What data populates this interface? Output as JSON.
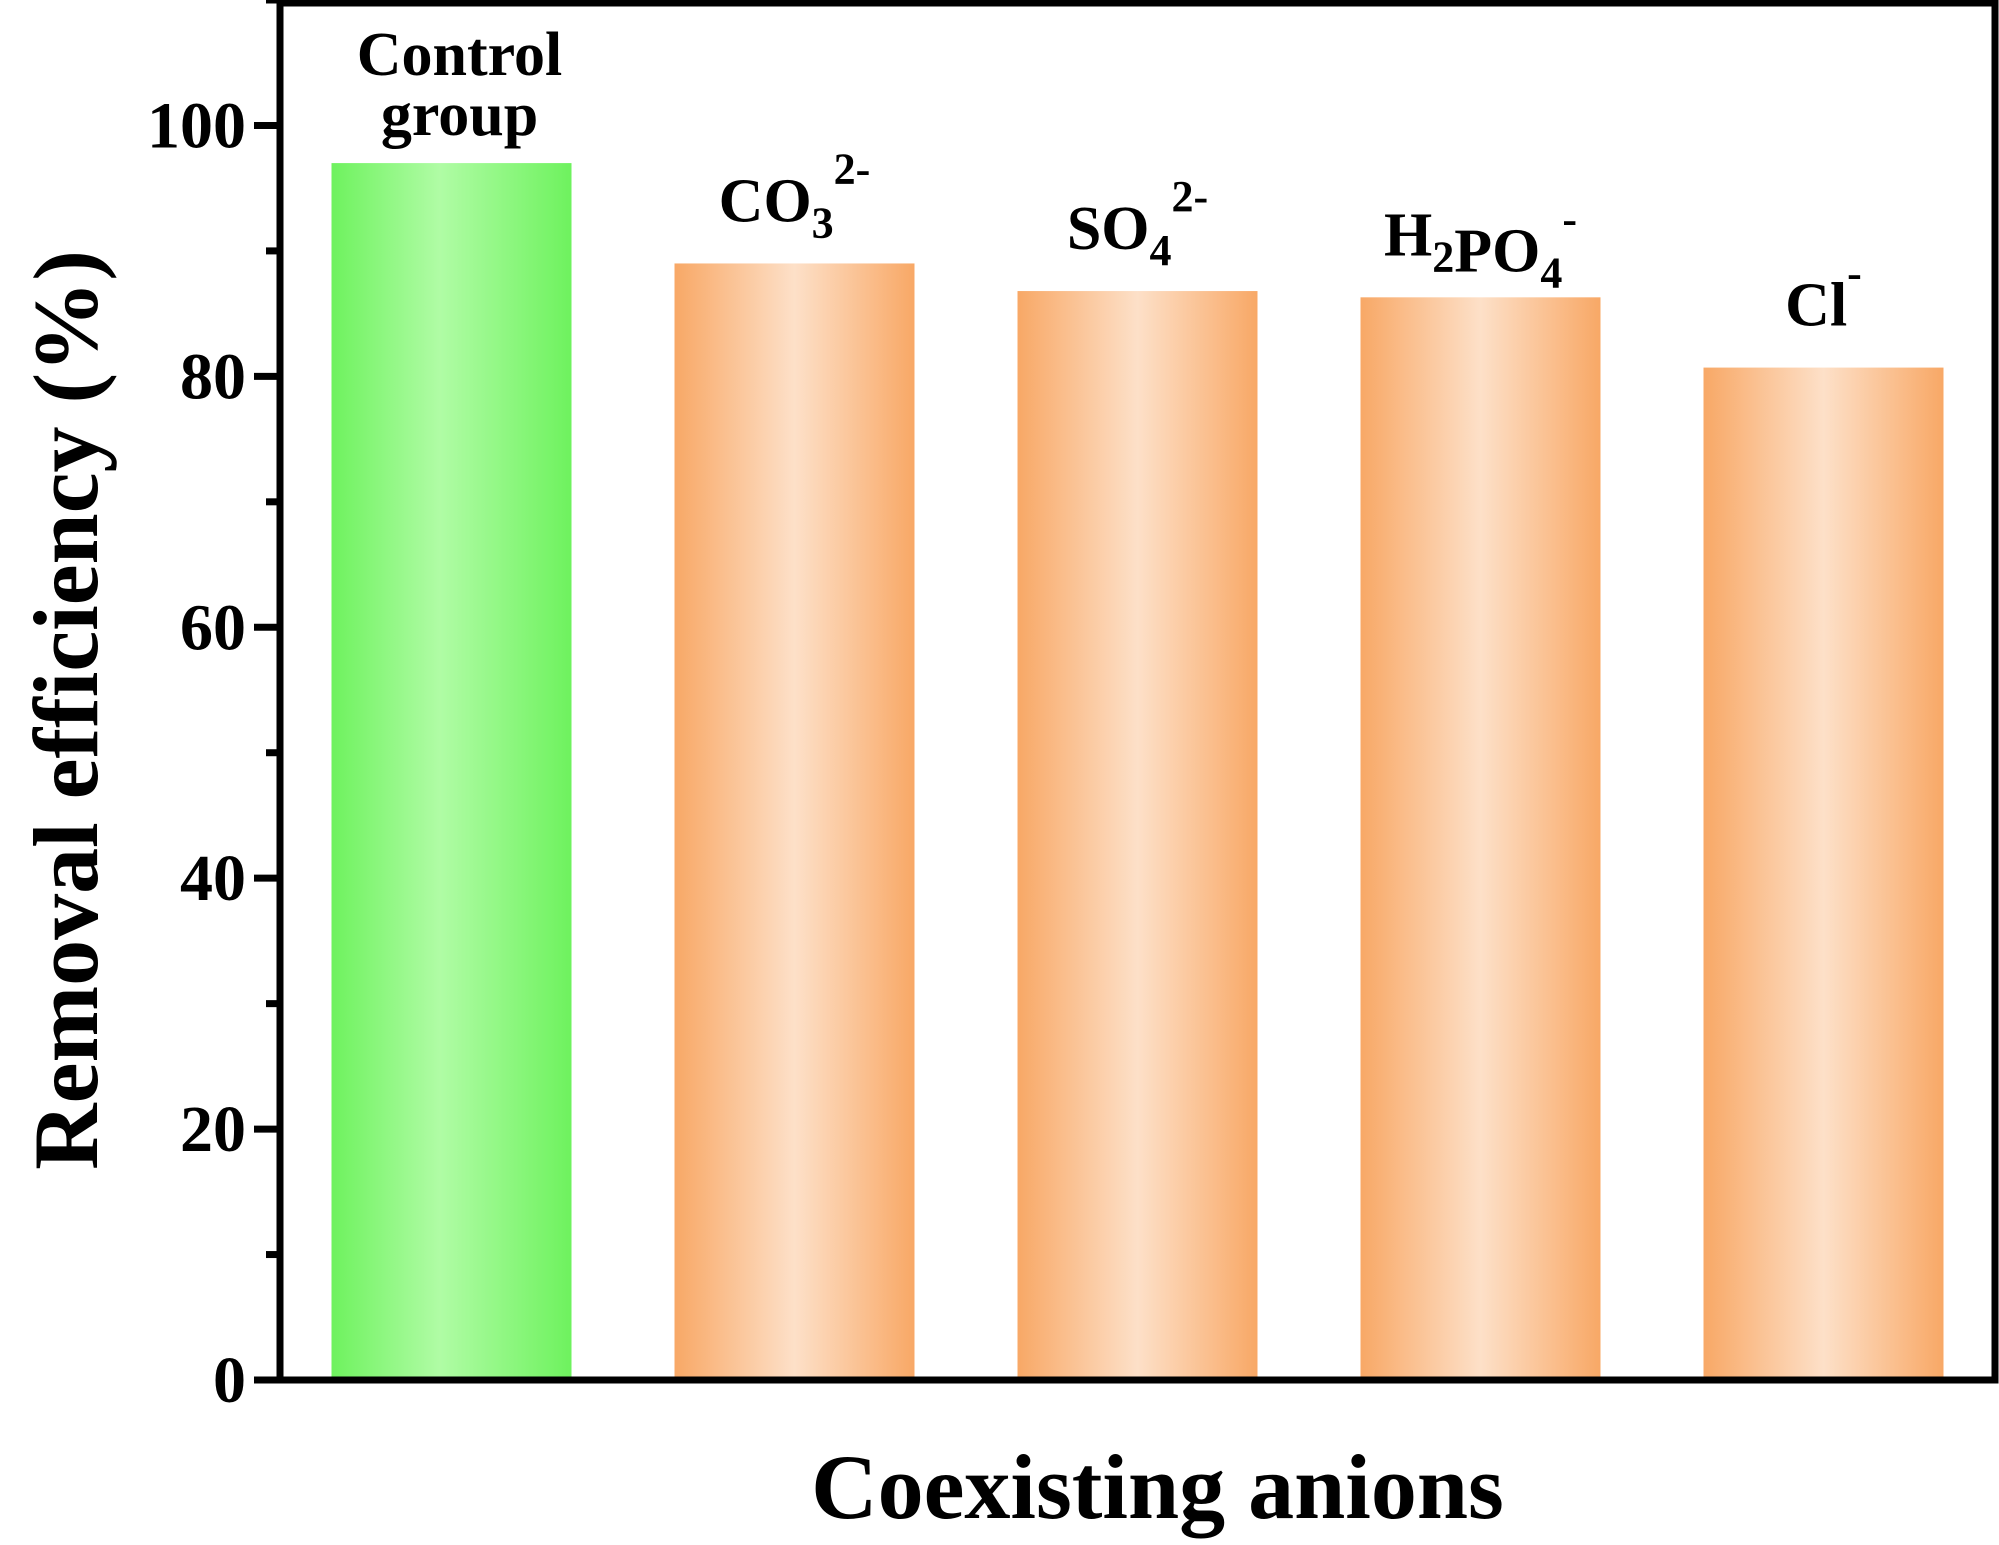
{
  "chart_data": {
    "type": "bar",
    "xlabel": "Coexisting anions",
    "ylabel": "Removal efficiency (%)",
    "ylim": [
      0,
      100
    ],
    "yticks": [
      0,
      20,
      40,
      60,
      80,
      100
    ],
    "categories": [
      "Control group",
      "CO3 2-",
      "SO4 2-",
      "H2PO4 -",
      "Cl-"
    ],
    "values": [
      97.0,
      89.0,
      86.8,
      86.3,
      80.7
    ],
    "bar_labels": [
      {
        "lines": [
          "Control",
          "group"
        ]
      },
      {
        "base": "CO",
        "sub": "3",
        "sup": "2-"
      },
      {
        "base": "SO",
        "sub": "4",
        "sup": "2-"
      },
      {
        "pre": "H",
        "pre_sub": "2",
        "base": "PO",
        "sub": "4",
        "sup": "-"
      },
      {
        "base": "Cl",
        "sup": "-"
      }
    ],
    "colors": {
      "control": "#8af47a",
      "anion": "#f9ad72"
    },
    "grid": false,
    "legend": "none"
  }
}
